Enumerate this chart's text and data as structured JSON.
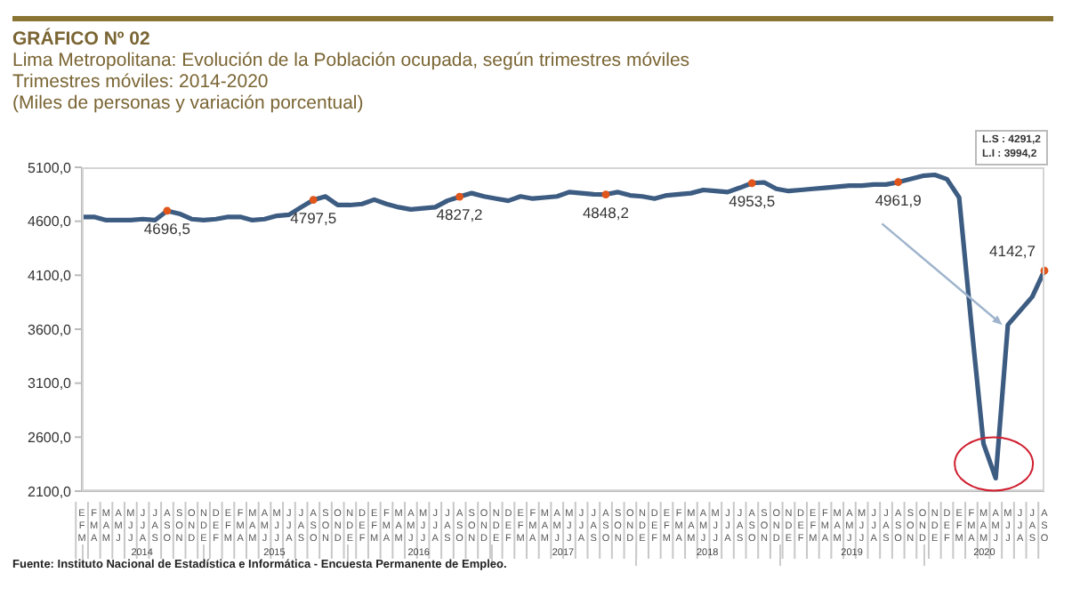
{
  "chart_data": {
    "type": "line",
    "title": "GRÁFICO Nº 02",
    "subtitle": "Lima Metropolitana: Evolución de la Población ocupada, según trimestres móviles\nTrimestres móviles: 2014-2020\n(Miles de personas y variación porcentual)",
    "categories": [
      "EFM",
      "FMA",
      "MAM",
      "AMJ",
      "MJJ",
      "JJA",
      "JAS",
      "ASO",
      "SON",
      "OND",
      "NDE",
      "DEF",
      "EFM",
      "FMA",
      "MAM",
      "AMJ",
      "MJJ",
      "JJA",
      "JAS",
      "ASO",
      "SON",
      "OND",
      "NDE",
      "DEF",
      "EFM",
      "FMA",
      "MAM",
      "AMJ",
      "MJJ",
      "JJA",
      "JAS",
      "ASO",
      "SON",
      "OND",
      "NDE",
      "DEF",
      "EFM",
      "FMA",
      "MAM",
      "AMJ",
      "MJJ",
      "JJA",
      "JAS",
      "ASO",
      "SON",
      "OND",
      "NDE",
      "DEF",
      "EFM",
      "FMA",
      "MAM",
      "AMJ",
      "MJJ",
      "JJA",
      "JAS",
      "ASO",
      "SON",
      "OND",
      "NDE",
      "DEF",
      "EFM",
      "FMA",
      "MAM",
      "AMJ",
      "MJJ",
      "JJA",
      "JAS",
      "ASO",
      "SON",
      "OND",
      "NDE",
      "DEF",
      "EFM",
      "FMA",
      "MAM",
      "AMJ",
      "MJJ",
      "JJA",
      "JAS",
      "ASO"
    ],
    "series": [
      {
        "color": "#3d5c82",
        "values": [
          4640,
          4640,
          4610,
          4610,
          4610,
          4620,
          4610,
          4696.5,
          4670,
          4620,
          4610,
          4620,
          4640,
          4640,
          4610,
          4620,
          4650,
          4660,
          4730,
          4797.5,
          4830,
          4750,
          4750,
          4760,
          4800,
          4760,
          4730,
          4710,
          4720,
          4730,
          4790,
          4827.2,
          4860,
          4830,
          4810,
          4790,
          4830,
          4810,
          4820,
          4830,
          4870,
          4860,
          4850,
          4848.2,
          4870,
          4840,
          4830,
          4810,
          4840,
          4850,
          4860,
          4890,
          4880,
          4870,
          4910,
          4953.5,
          4960,
          4900,
          4880,
          4890,
          4900,
          4910,
          4920,
          4930,
          4930,
          4940,
          4940,
          4961.9,
          4990,
          5020,
          5030,
          4990,
          4820,
          3650,
          2540,
          2220,
          3640,
          3770,
          3900,
          4142.7
        ],
        "value_labels": [
          null,
          null,
          null,
          null,
          null,
          null,
          null,
          "4696,5",
          null,
          null,
          null,
          null,
          null,
          null,
          null,
          null,
          null,
          null,
          null,
          "4797,5",
          null,
          null,
          null,
          null,
          null,
          null,
          null,
          null,
          null,
          null,
          null,
          "4827,2",
          null,
          null,
          null,
          null,
          null,
          null,
          null,
          null,
          null,
          null,
          null,
          "4848,2",
          null,
          null,
          null,
          null,
          null,
          null,
          null,
          null,
          null,
          null,
          null,
          "4953,5",
          null,
          null,
          null,
          null,
          null,
          null,
          null,
          null,
          null,
          null,
          null,
          "4961,9",
          null,
          null,
          null,
          null,
          null,
          null,
          null,
          null,
          null,
          null,
          null,
          "4142,7"
        ]
      }
    ],
    "ylim": [
      2100,
      5100
    ],
    "yticks": [
      {
        "value": 2100,
        "label": "2100,0"
      },
      {
        "value": 2600,
        "label": "2600,0"
      },
      {
        "value": 3100,
        "label": "3100,0"
      },
      {
        "value": 3600,
        "label": "3600,0"
      },
      {
        "value": 4100,
        "label": "4100,0"
      },
      {
        "value": 4600,
        "label": "4600,0"
      },
      {
        "value": 5100,
        "label": "5100,0"
      }
    ],
    "annotations": [
      "L.S : 4291,2",
      "L.I : 3994,2",
      "Fuente: Instituto Nacional de Estadística e Informática - Encuesta Permanente de Empleo.",
      "2014",
      "2015",
      "2016",
      "2017",
      "2018",
      "2019",
      "2020"
    ]
  }
}
